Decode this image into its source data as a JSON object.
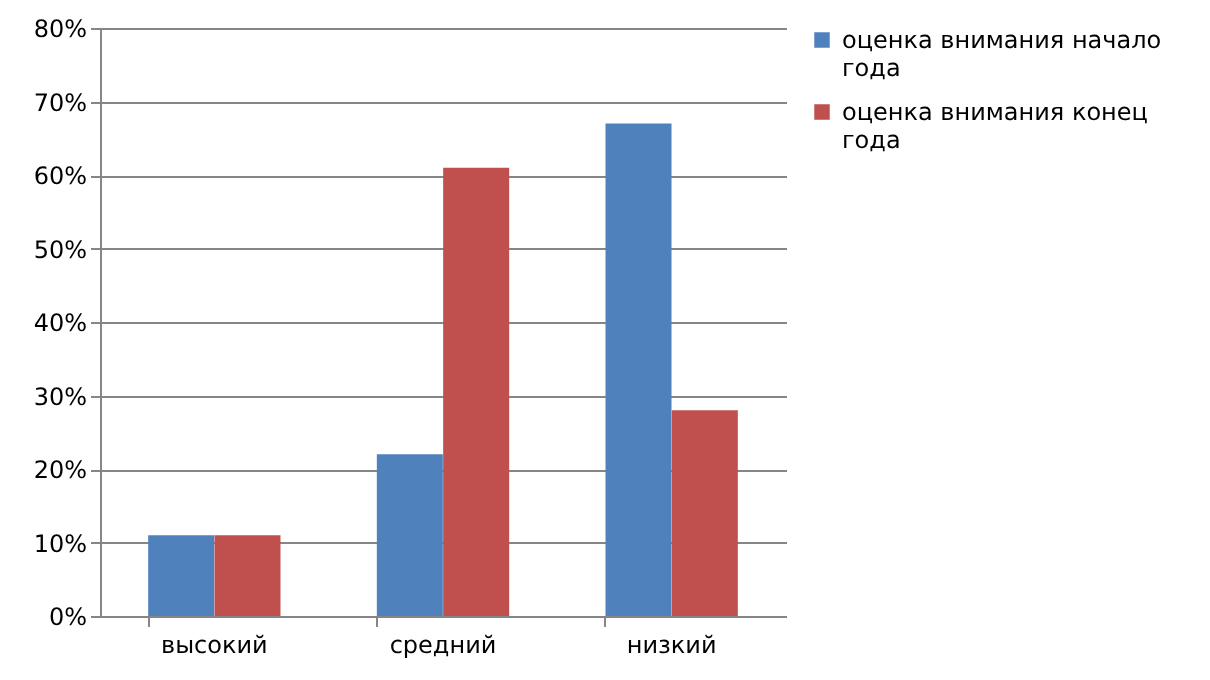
{
  "chart_data": {
    "type": "bar",
    "categories": [
      "высокий",
      "средний",
      "низкий"
    ],
    "series": [
      {
        "name": "оценка внимания начало года",
        "color": "#4f81bd",
        "values": [
          11,
          22,
          67
        ]
      },
      {
        "name": "оценка внимания конец года",
        "color": "#c0504d",
        "values": [
          11,
          61,
          28
        ]
      }
    ],
    "ylim": [
      0,
      80
    ],
    "yticks": [
      {
        "value": 0,
        "label": "0%"
      },
      {
        "value": 10,
        "label": "10%"
      },
      {
        "value": 20,
        "label": "20%"
      },
      {
        "value": 30,
        "label": "30%"
      },
      {
        "value": 40,
        "label": "40%"
      },
      {
        "value": 50,
        "label": "50%"
      },
      {
        "value": 60,
        "label": "60%"
      },
      {
        "value": 70,
        "label": "70%"
      },
      {
        "value": 80,
        "label": "80%"
      }
    ],
    "grid": "y",
    "legend": "right"
  }
}
